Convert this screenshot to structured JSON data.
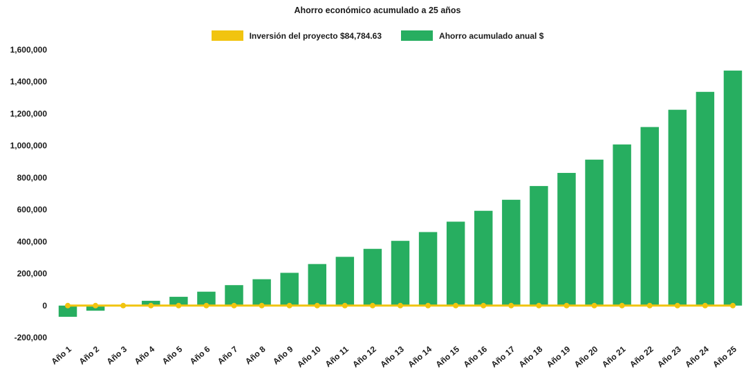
{
  "chart_data": {
    "type": "bar",
    "title": "Ahorro económico acumulado a 25 años",
    "categories": [
      "Año 1",
      "Año 2",
      "Año 3",
      "Año 4",
      "Año 5",
      "Año 6",
      "Año 7",
      "Año 8",
      "Año 9",
      "Año 10",
      "Año 11",
      "Año 12",
      "Año 13",
      "Año 14",
      "Año 15",
      "Año 16",
      "Año 17",
      "Año 18",
      "Año 19",
      "Año 20",
      "Año 21",
      "Año 22",
      "Año 23",
      "Año 24",
      "Año 25"
    ],
    "series": [
      {
        "name": "Inversión del proyecto $84,784.63",
        "type": "line",
        "color": "#F1C40F",
        "values": [
          0,
          0,
          0,
          0,
          0,
          0,
          0,
          0,
          0,
          0,
          0,
          0,
          0,
          0,
          0,
          0,
          0,
          0,
          0,
          0,
          0,
          0,
          0,
          0,
          0
        ]
      },
      {
        "name": "Ahorro acumulado anual $",
        "type": "bar",
        "color": "#27AE60",
        "values": [
          -70000,
          -32000,
          4000,
          30000,
          55000,
          87000,
          128000,
          165000,
          205000,
          260000,
          305000,
          355000,
          405000,
          460000,
          525000,
          593000,
          662000,
          748000,
          830000,
          913000,
          1008000,
          1117000,
          1225000,
          1337000,
          1470000
        ]
      }
    ],
    "ylim": [
      -200000,
      1600000
    ],
    "ytick_step": 200000,
    "ytick_labels": [
      "-200,000",
      "0",
      "200,000",
      "400,000",
      "600,000",
      "800,000",
      "1,000,000",
      "1,200,000",
      "1,400,000",
      "1,600,000"
    ],
    "grid": false,
    "legend_position": "top",
    "xlabel": "",
    "ylabel": "",
    "text_color": "#1A1A1A",
    "background": "#FFFFFF"
  }
}
